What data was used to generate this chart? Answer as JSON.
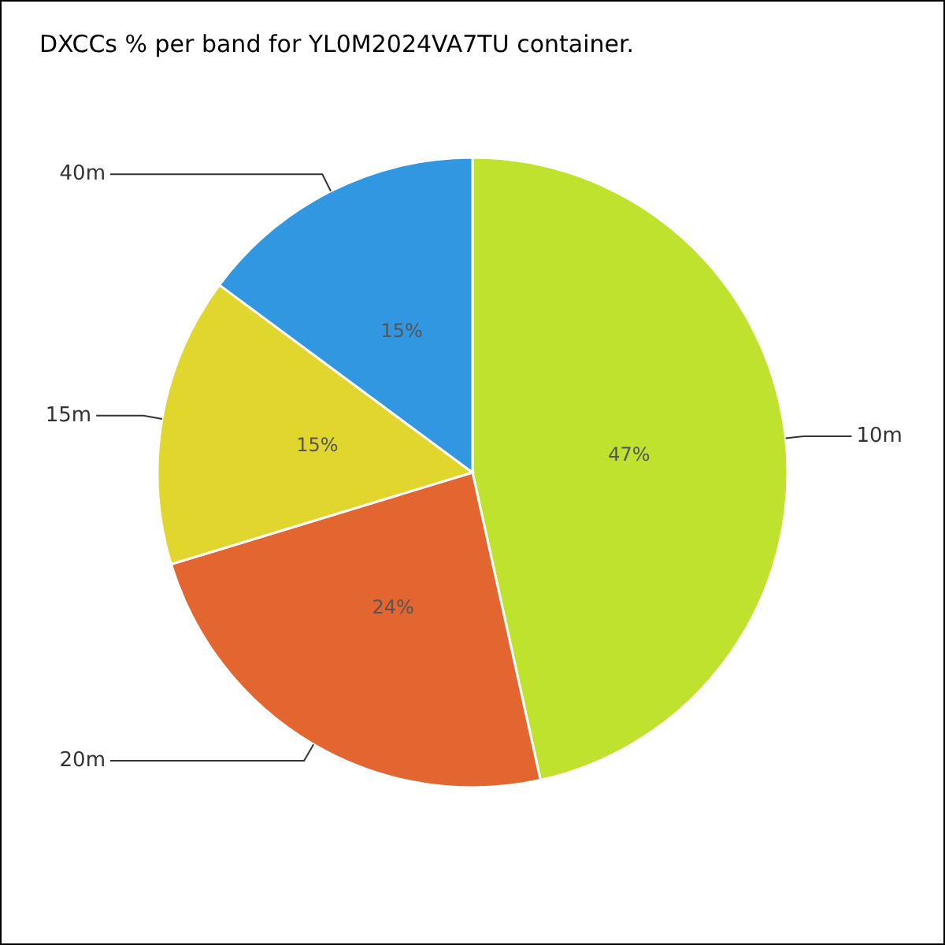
{
  "chart_data": {
    "type": "pie",
    "title": "DXCCs % per band for YL0M2024VA7TU container.",
    "categories": [
      "10m",
      "20m",
      "15m",
      "40m"
    ],
    "values": [
      47,
      24,
      15,
      15
    ],
    "value_labels": [
      "47%",
      "24%",
      "15%",
      "15%"
    ],
    "colors": [
      "#bfe22f",
      "#e36630",
      "#e0d62d",
      "#3097e0"
    ]
  }
}
